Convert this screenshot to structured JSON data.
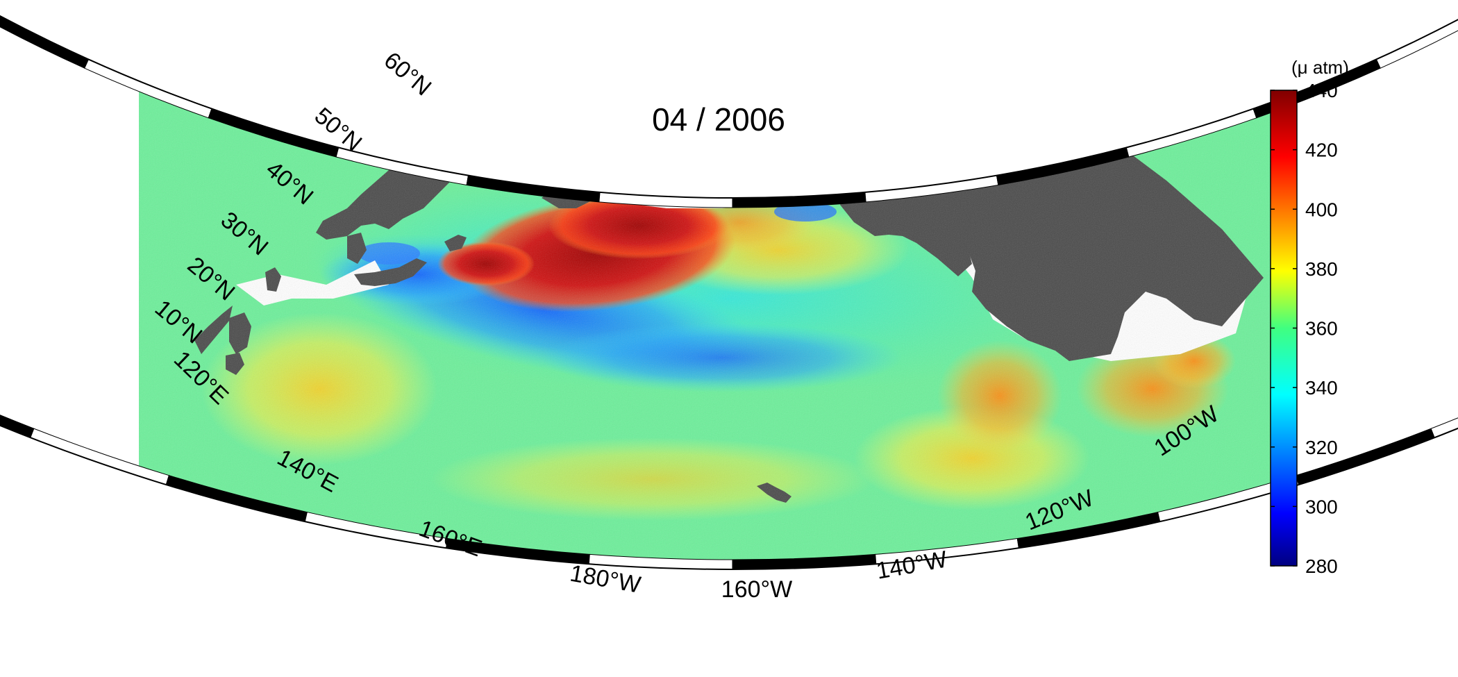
{
  "title": "04 / 2006",
  "colorbar": {
    "unit": "(μ atm)",
    "ticks": [
      "280",
      "300",
      "320",
      "340",
      "360",
      "380",
      "400",
      "420",
      "440"
    ],
    "range": [
      280,
      440
    ],
    "colormap": "jet"
  },
  "latitude_labels": [
    {
      "id": "10n",
      "label": "10°N"
    },
    {
      "id": "20n",
      "label": "20°N"
    },
    {
      "id": "30n",
      "label": "30°N"
    },
    {
      "id": "40n",
      "label": "40°N"
    },
    {
      "id": "50n",
      "label": "50°N"
    },
    {
      "id": "60n",
      "label": "60°N"
    }
  ],
  "longitude_labels": [
    {
      "id": "120e",
      "label": "120°E"
    },
    {
      "id": "140e",
      "label": "140°E"
    },
    {
      "id": "160e",
      "label": "160°E"
    },
    {
      "id": "180w",
      "label": "180°W"
    },
    {
      "id": "160w",
      "label": "160°W"
    },
    {
      "id": "140w",
      "label": "140°W"
    },
    {
      "id": "120w",
      "label": "120°W"
    },
    {
      "id": "100w",
      "label": "100°W"
    }
  ],
  "colors": {
    "land": "#4a4a4a",
    "frame_dark": "#000000",
    "frame_light": "#ffffff"
  }
}
